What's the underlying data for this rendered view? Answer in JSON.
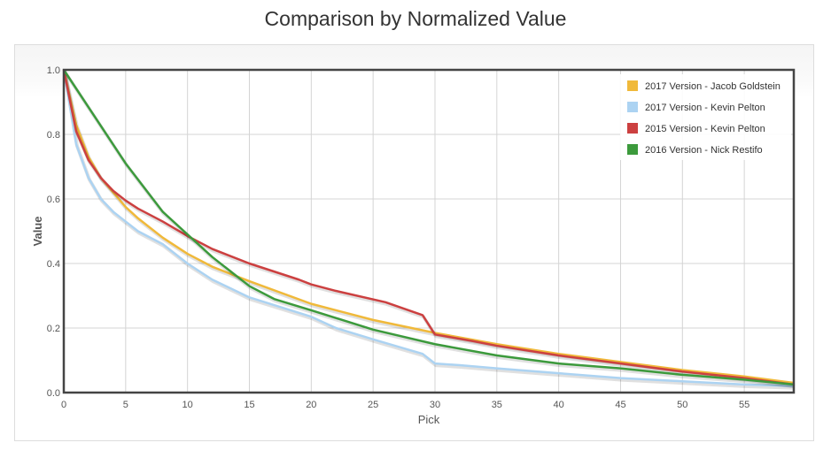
{
  "chart_data": {
    "type": "line",
    "title": "Comparison by Normalized Value",
    "xlabel": "Pick",
    "ylabel": "Value",
    "xlim": [
      0,
      59
    ],
    "ylim": [
      0,
      1
    ],
    "xticks": [
      0,
      5,
      10,
      15,
      20,
      25,
      30,
      35,
      40,
      45,
      50,
      55
    ],
    "yticks": [
      "0.0",
      "0.2",
      "0.4",
      "0.6",
      "0.8",
      "1.0"
    ],
    "grid": true,
    "legend_position": "top-right",
    "series": [
      {
        "name": "2017 Version - Jacob Goldstein",
        "color": "#f0b93a",
        "x": [
          0,
          1,
          2,
          3,
          4,
          5,
          6,
          7,
          8,
          10,
          12,
          15,
          20,
          25,
          30,
          35,
          40,
          45,
          50,
          55,
          59
        ],
        "y": [
          1,
          0.83,
          0.73,
          0.665,
          0.62,
          0.575,
          0.54,
          0.51,
          0.48,
          0.43,
          0.39,
          0.345,
          0.275,
          0.225,
          0.185,
          0.15,
          0.12,
          0.095,
          0.07,
          0.05,
          0.03
        ]
      },
      {
        "name": "2017 Version - Kevin Pelton",
        "color": "#acd3f2",
        "x": [
          0,
          1,
          2,
          3,
          4,
          5,
          6,
          8,
          10,
          12,
          15,
          20,
          22,
          25,
          29,
          30,
          32,
          35,
          40,
          45,
          50,
          55,
          59
        ],
        "y": [
          1,
          0.77,
          0.665,
          0.6,
          0.56,
          0.53,
          0.5,
          0.46,
          0.4,
          0.35,
          0.295,
          0.235,
          0.2,
          0.165,
          0.12,
          0.09,
          0.085,
          0.075,
          0.06,
          0.045,
          0.035,
          0.025,
          0.02
        ]
      },
      {
        "name": "2015 Version - Kevin Pelton",
        "color": "#cc4040",
        "x": [
          0,
          1,
          2,
          3,
          4,
          5,
          6,
          8,
          10,
          12,
          15,
          17,
          19,
          20,
          22,
          26,
          29,
          30,
          33,
          35,
          40,
          45,
          50,
          55,
          59
        ],
        "y": [
          1,
          0.81,
          0.72,
          0.665,
          0.625,
          0.595,
          0.57,
          0.53,
          0.485,
          0.445,
          0.4,
          0.375,
          0.35,
          0.335,
          0.315,
          0.28,
          0.24,
          0.18,
          0.16,
          0.145,
          0.115,
          0.09,
          0.065,
          0.045,
          0.025
        ]
      },
      {
        "name": "2016 Version - Nick Restifo",
        "color": "#3c9a3c",
        "x": [
          0,
          5,
          8,
          10,
          12,
          15,
          17,
          20,
          25,
          30,
          35,
          40,
          45,
          50,
          55,
          59
        ],
        "y": [
          1,
          0.71,
          0.56,
          0.49,
          0.42,
          0.33,
          0.29,
          0.255,
          0.195,
          0.15,
          0.115,
          0.09,
          0.075,
          0.055,
          0.04,
          0.025
        ]
      }
    ]
  }
}
